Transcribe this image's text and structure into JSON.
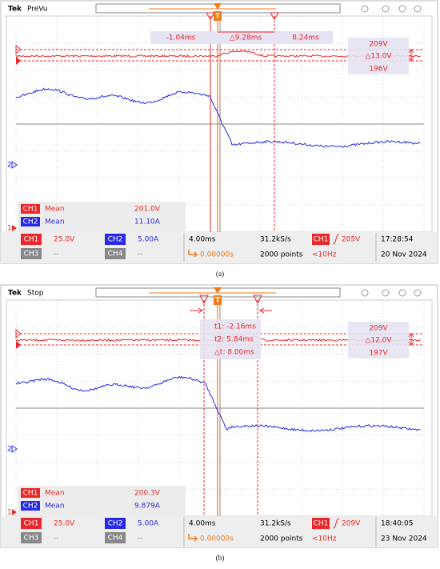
{
  "panels": [
    {
      "brand": "Tek",
      "status": "PreVu",
      "cursor_readouts": [
        "-1.04ms",
        "△9.28ms",
        "8.24ms"
      ],
      "levels": [
        "209V",
        "△13.0V",
        "196V"
      ],
      "markers": {
        "trigger": "T",
        "ch2": "2",
        "ch1": "1"
      },
      "measurements": [
        {
          "channel": "CH1",
          "stat": "Mean",
          "value": "201.0V"
        },
        {
          "channel": "CH2",
          "stat": "Mean",
          "value": "11.10A"
        }
      ],
      "channels": [
        {
          "name": "CH1",
          "scale": "25.0V"
        },
        {
          "name": "CH2",
          "scale": "5.00A"
        },
        {
          "name": "CH3",
          "scale": "--"
        },
        {
          "name": "CH4",
          "scale": "--"
        }
      ],
      "timebase": "4.00ms",
      "position": "0.00000s",
      "sample_rate": "31.2kS/s",
      "record_length": "2000 points",
      "trigger": {
        "source": "CH1",
        "level": "205V",
        "frequency": "<10Hz"
      },
      "time": "17:28:54",
      "date": "20 Nov 2024",
      "caption": "(a)"
    },
    {
      "brand": "Tek",
      "status": "Stop",
      "cursor_readouts": [
        "t1: -2.16ms",
        "t2: 5.84ms",
        "△t: 8.00ms"
      ],
      "levels": [
        "209V",
        "△12.0V",
        "197V"
      ],
      "markers": {
        "trigger": "T",
        "ch2": "2",
        "ch1": "1"
      },
      "measurements": [
        {
          "channel": "CH1",
          "stat": "Mean",
          "value": "200.3V"
        },
        {
          "channel": "CH2",
          "stat": "Mean",
          "value": "9.879A"
        }
      ],
      "channels": [
        {
          "name": "CH1",
          "scale": "25.0V"
        },
        {
          "name": "CH2",
          "scale": "5.00A"
        },
        {
          "name": "CH3",
          "scale": "--"
        },
        {
          "name": "CH4",
          "scale": "--"
        }
      ],
      "timebase": "4.00ms",
      "position": "0.00000s",
      "sample_rate": "31.2kS/s",
      "record_length": "2000 points",
      "trigger": {
        "source": "CH1",
        "level": "209V",
        "frequency": "<10Hz"
      },
      "time": "18:40:05",
      "date": "23 Nov 2024",
      "caption": "(b)"
    }
  ]
}
